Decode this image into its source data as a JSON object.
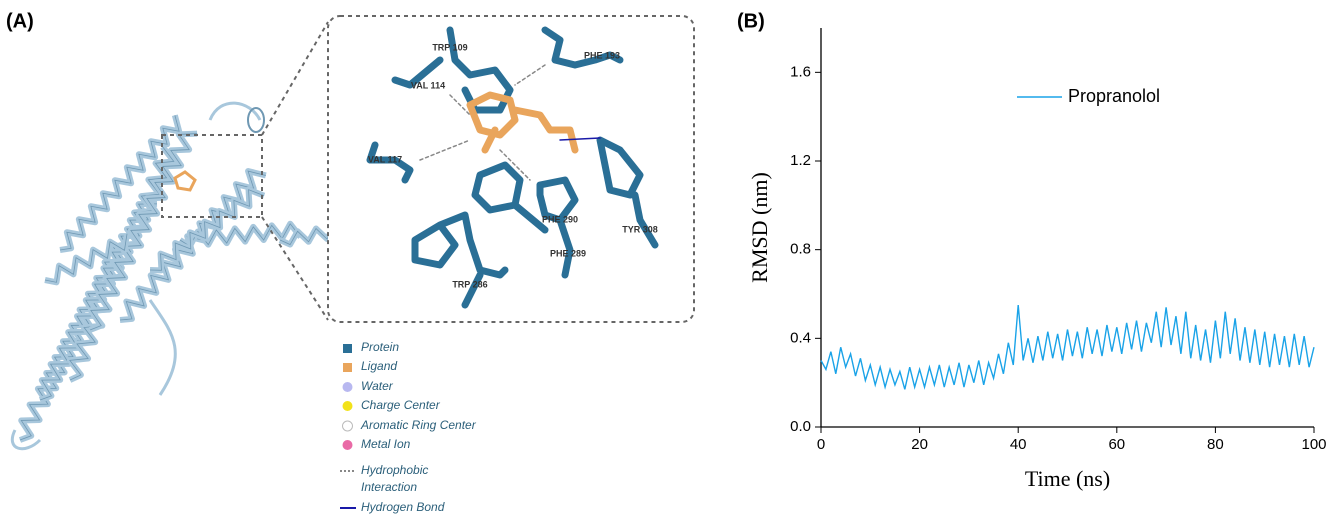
{
  "panel_a": {
    "label": "(A)",
    "residues": [
      "TRP 109",
      "PHE 193",
      "VAL 114",
      "VAL 117",
      "PHE 290",
      "TYR 308",
      "PHE 289",
      "TRP 286"
    ],
    "legend": [
      "Protein",
      "Ligand",
      "Water",
      "Charge Center",
      "Aromatic Ring Center",
      "Metal Ion",
      "Hydrophobic Interaction",
      "Hydrogen Bond"
    ]
  },
  "panel_b_label": "(B)",
  "chart_data": {
    "type": "line",
    "xlabel": "Time (ns)",
    "ylabel": "RMSD (nm)",
    "xlim": [
      0,
      100
    ],
    "xticks": [
      0,
      20,
      40,
      60,
      80,
      100
    ],
    "ylim": [
      0,
      1.8
    ],
    "yticks": [
      {
        "value": 0,
        "label": "0.0"
      },
      0.4,
      0.8,
      1.2,
      1.6
    ],
    "legend_position": "upper center",
    "x": [
      0,
      1,
      2,
      3,
      4,
      5,
      6,
      7,
      8,
      9,
      10,
      11,
      12,
      13,
      14,
      15,
      16,
      17,
      18,
      19,
      20,
      21,
      22,
      23,
      24,
      25,
      26,
      27,
      28,
      29,
      30,
      31,
      32,
      33,
      34,
      35,
      36,
      37,
      38,
      39,
      40,
      41,
      42,
      43,
      44,
      45,
      46,
      47,
      48,
      49,
      50,
      51,
      52,
      53,
      54,
      55,
      56,
      57,
      58,
      59,
      60,
      61,
      62,
      63,
      64,
      65,
      66,
      67,
      68,
      69,
      70,
      71,
      72,
      73,
      74,
      75,
      76,
      77,
      78,
      79,
      80,
      81,
      82,
      83,
      84,
      85,
      86,
      87,
      88,
      89,
      90,
      91,
      92,
      93,
      94,
      95,
      96,
      97,
      98,
      99,
      100
    ],
    "series": [
      {
        "name": "Propranolol",
        "color": "#1aa3e8",
        "values": [
          0.3,
          0.26,
          0.34,
          0.24,
          0.36,
          0.27,
          0.33,
          0.23,
          0.31,
          0.21,
          0.28,
          0.19,
          0.27,
          0.18,
          0.26,
          0.19,
          0.25,
          0.17,
          0.27,
          0.18,
          0.26,
          0.18,
          0.27,
          0.19,
          0.28,
          0.18,
          0.27,
          0.19,
          0.29,
          0.18,
          0.28,
          0.2,
          0.3,
          0.19,
          0.29,
          0.22,
          0.33,
          0.24,
          0.38,
          0.28,
          0.55,
          0.3,
          0.4,
          0.29,
          0.41,
          0.3,
          0.43,
          0.31,
          0.42,
          0.3,
          0.44,
          0.32,
          0.43,
          0.31,
          0.45,
          0.33,
          0.44,
          0.32,
          0.46,
          0.34,
          0.45,
          0.33,
          0.47,
          0.35,
          0.48,
          0.34,
          0.47,
          0.38,
          0.52,
          0.36,
          0.54,
          0.37,
          0.5,
          0.33,
          0.52,
          0.31,
          0.46,
          0.3,
          0.44,
          0.29,
          0.48,
          0.31,
          0.52,
          0.33,
          0.49,
          0.3,
          0.45,
          0.29,
          0.44,
          0.28,
          0.43,
          0.27,
          0.42,
          0.28,
          0.41,
          0.27,
          0.42,
          0.28,
          0.41,
          0.27,
          0.36
        ]
      }
    ]
  }
}
